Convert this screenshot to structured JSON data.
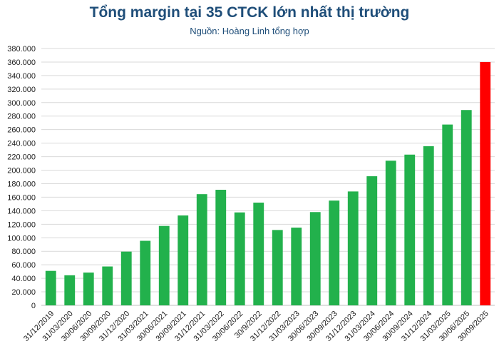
{
  "colors": {
    "bar": "#22b14c",
    "highlight": "#ff0000",
    "grid": "#d9d9d9",
    "title": "#1f4e79"
  },
  "chart_data": {
    "type": "bar",
    "title": "Tổng margin tại 35 CTCK lớn nhất thị trường",
    "subtitle": "Nguồn: Hoàng Linh tổng hợp",
    "xlabel": "",
    "ylabel": "",
    "ylim": [
      0,
      380000
    ],
    "y_ticks": [
      "0",
      "20.000",
      "40.000",
      "60.000",
      "80.000",
      "100.000",
      "120.000",
      "140.000",
      "160.000",
      "180.000",
      "200.000",
      "220.000",
      "240.000",
      "260.000",
      "280.000",
      "300.000",
      "320.000",
      "340.000",
      "360.000",
      "380.000"
    ],
    "grid": true,
    "legend": "none",
    "highlight_index": 23,
    "categories": [
      "31/12/2019",
      "31/03/2020",
      "30/06/2020",
      "30/09/2020",
      "31/12/2020",
      "31/03/2021",
      "30/06/2021",
      "30/09/2021",
      "31/12/2021",
      "31/03/2022",
      "30/06/2022",
      "30/9/2022",
      "31/12/2022",
      "31/03/2023",
      "30/06/2023",
      "30/09/2023",
      "31/12/2023",
      "31/03/2024",
      "30/06/2024",
      "30/09/2024",
      "31/12/2024",
      "31/03/2025",
      "30/06/2025",
      "30/09/2025"
    ],
    "values": [
      51000,
      44500,
      48500,
      57500,
      79500,
      95500,
      117500,
      133000,
      164500,
      171000,
      137500,
      152000,
      111500,
      115000,
      138000,
      155000,
      168500,
      191000,
      214000,
      223000,
      235500,
      267500,
      289000,
      360000
    ]
  }
}
